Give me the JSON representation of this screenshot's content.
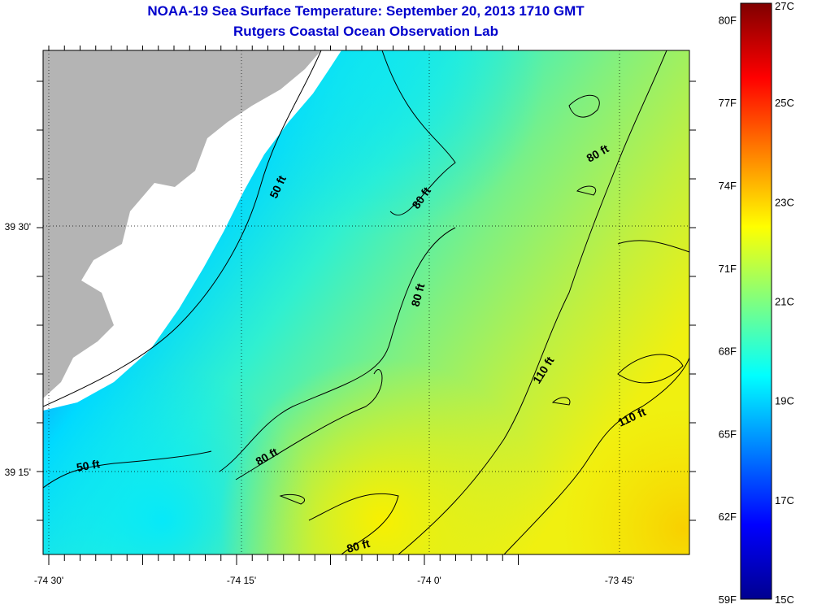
{
  "title": "NOAA-19 Sea Surface Temperature:  September 20, 2013 1710 GMT",
  "subtitle": "Rutgers Coastal Ocean Observation Lab",
  "map": {
    "lon_ticks": [
      "-74 30'",
      "-74 15'",
      "-74 0'",
      "-73 45'"
    ],
    "lat_ticks": [
      "39 30'",
      "39 15'"
    ],
    "contour_labels": [
      "50 ft",
      "80 ft",
      "80 ft",
      "80 ft",
      "110 ft",
      "110 ft",
      "50 ft",
      "80 ft",
      "80 ft"
    ],
    "colors": {
      "land": "#b4b4b4",
      "no_data": "#ffffff",
      "contour": "#000000"
    }
  },
  "colorbar": {
    "fahrenheit_labels": [
      "80F",
      "77F",
      "74F",
      "71F",
      "68F",
      "65F",
      "62F",
      "59F"
    ],
    "celsius_labels": [
      "27C",
      "25C",
      "23C",
      "21C",
      "19C",
      "17C",
      "15C"
    ],
    "range_c": [
      15,
      27
    ],
    "colormap": "jet"
  }
}
